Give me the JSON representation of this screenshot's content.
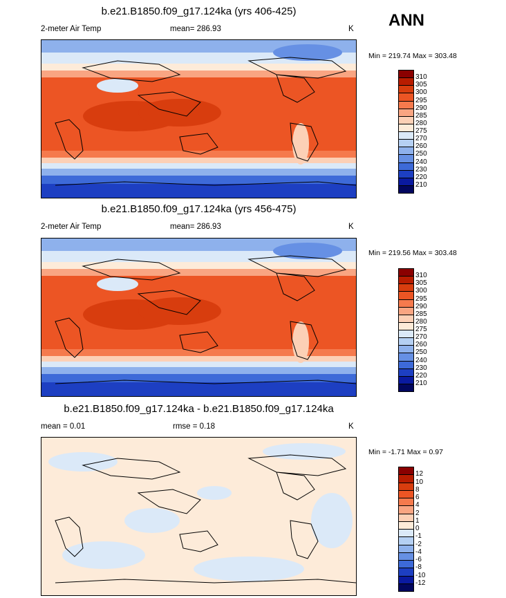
{
  "season": "ANN",
  "panels": [
    {
      "title": "b.e21.B1850.f09_g17.124ka (yrs 406-425)",
      "left_label": "2-meter Air Temp",
      "center_label": "mean= 286.93",
      "units": "K",
      "minmax": "Min = 219.74 Max = 303.48",
      "colorbar": {
        "labels": [
          "310",
          "305",
          "300",
          "295",
          "290",
          "285",
          "280",
          "275",
          "270",
          "260",
          "250",
          "240",
          "230",
          "220",
          "210"
        ],
        "colors": [
          "#8a0000",
          "#b81c00",
          "#d83d0e",
          "#ec5524",
          "#f57a4d",
          "#f9a582",
          "#fcd0b6",
          "#fdebd9",
          "#dbe9f8",
          "#b5d0f3",
          "#8eb1ec",
          "#6690e4",
          "#3d6ad8",
          "#1d3fc2",
          "#0a1aa0",
          "#02075f"
        ]
      }
    },
    {
      "title": "b.e21.B1850.f09_g17.124ka (yrs 456-475)",
      "left_label": "2-meter Air Temp",
      "center_label": "mean= 286.93",
      "units": "K",
      "minmax": "Min = 219.56 Max = 303.48",
      "colorbar": {
        "labels": [
          "310",
          "305",
          "300",
          "295",
          "290",
          "285",
          "280",
          "275",
          "270",
          "260",
          "250",
          "240",
          "230",
          "220",
          "210"
        ],
        "colors": [
          "#8a0000",
          "#b81c00",
          "#d83d0e",
          "#ec5524",
          "#f57a4d",
          "#f9a582",
          "#fcd0b6",
          "#fdebd9",
          "#dbe9f8",
          "#b5d0f3",
          "#8eb1ec",
          "#6690e4",
          "#3d6ad8",
          "#1d3fc2",
          "#0a1aa0",
          "#02075f"
        ]
      }
    },
    {
      "title": "b.e21.B1850.f09_g17.124ka - b.e21.B1850.f09_g17.124ka",
      "left_label": "mean =   0.01",
      "center_label": "rmse =   0.18",
      "units": "K",
      "minmax": "Min =  -1.71 Max =   0.97",
      "colorbar": {
        "labels": [
          "12",
          "10",
          "8",
          "6",
          "4",
          "2",
          "1",
          "0",
          "-1",
          "-2",
          "-4",
          "-6",
          "-8",
          "-10",
          "-12"
        ],
        "colors": [
          "#8a0000",
          "#b81c00",
          "#d83d0e",
          "#ec5524",
          "#f57a4d",
          "#f9a582",
          "#fcd0b6",
          "#fdebd9",
          "#dbe9f8",
          "#b5d0f3",
          "#8eb1ec",
          "#6690e4",
          "#3d6ad8",
          "#1d3fc2",
          "#0a1aa0",
          "#02075f"
        ]
      }
    }
  ],
  "chart_data": [
    {
      "type": "heatmap",
      "title": "b.e21.B1850.f09_g17.124ka (yrs 406-425)",
      "variable": "2-meter Air Temp",
      "units": "K",
      "mean": 286.93,
      "min": 219.74,
      "max": 303.48,
      "levels": [
        210,
        220,
        230,
        240,
        250,
        260,
        270,
        275,
        280,
        285,
        290,
        295,
        300,
        305,
        310
      ]
    },
    {
      "type": "heatmap",
      "title": "b.e21.B1850.f09_g17.124ka (yrs 456-475)",
      "variable": "2-meter Air Temp",
      "units": "K",
      "mean": 286.93,
      "min": 219.56,
      "max": 303.48,
      "levels": [
        210,
        220,
        230,
        240,
        250,
        260,
        270,
        275,
        280,
        285,
        290,
        295,
        300,
        305,
        310
      ]
    },
    {
      "type": "heatmap",
      "title": "b.e21.B1850.f09_g17.124ka - b.e21.B1850.f09_g17.124ka",
      "units": "K",
      "mean": 0.01,
      "rmse": 0.18,
      "min": -1.71,
      "max": 0.97,
      "levels": [
        -12,
        -10,
        -8,
        -6,
        -4,
        -2,
        -1,
        0,
        1,
        2,
        4,
        6,
        8,
        10,
        12
      ]
    }
  ]
}
